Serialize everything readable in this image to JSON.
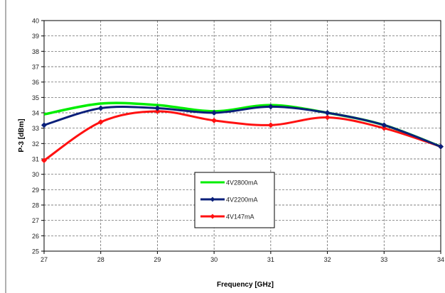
{
  "chart_data": {
    "type": "line",
    "xlabel": "Frequency  [GHz]",
    "ylabel": "P-3  [dBm]",
    "xlim": [
      27,
      34
    ],
    "ylim": [
      25,
      40
    ],
    "x_ticks": [
      "27",
      "28",
      "29",
      "30",
      "31",
      "32",
      "33",
      "34"
    ],
    "y_ticks": [
      "25",
      "26",
      "27",
      "28",
      "29",
      "30",
      "31",
      "32",
      "33",
      "34",
      "35",
      "36",
      "37",
      "38",
      "39",
      "40"
    ],
    "grid": "on, dashed",
    "legend_position": "bottom-center",
    "x": [
      27,
      28,
      29,
      30,
      31,
      32,
      33,
      34
    ],
    "series": [
      {
        "name": "4V2800mA",
        "color": "#00ee00",
        "marker": "none",
        "values": [
          33.9,
          34.6,
          34.5,
          34.1,
          34.5,
          34.0,
          33.2,
          31.8
        ]
      },
      {
        "name": "4V2200mA",
        "color": "#0a1f7a",
        "marker": "diamond",
        "values": [
          33.2,
          34.3,
          34.3,
          34.0,
          34.4,
          34.0,
          33.2,
          31.8
        ]
      },
      {
        "name": "4V147mA",
        "color": "#ff1111",
        "marker": "diamond",
        "values": [
          30.9,
          33.4,
          34.1,
          33.5,
          33.2,
          33.7,
          33.0,
          31.8
        ]
      }
    ]
  }
}
